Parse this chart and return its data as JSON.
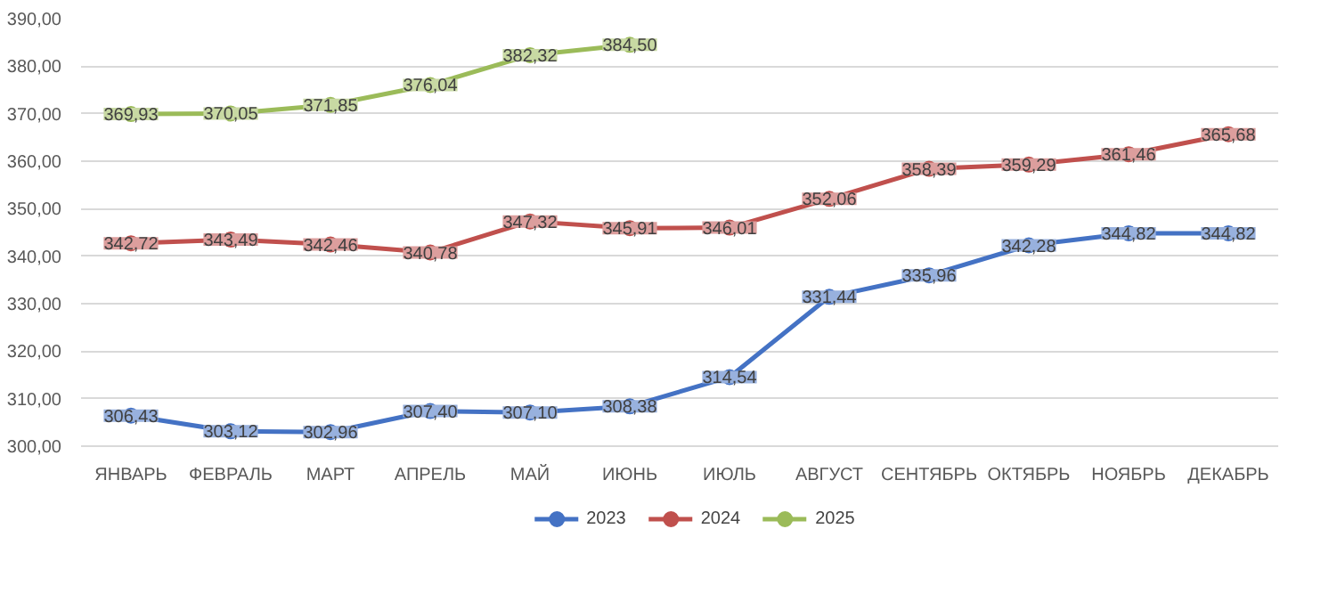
{
  "chart_data": {
    "type": "line",
    "categories": [
      "ЯНВАРЬ",
      "ФЕВРАЛЬ",
      "МАРТ",
      "АПРЕЛЬ",
      "МАЙ",
      "ИЮНЬ",
      "ИЮЛЬ",
      "АВГУСТ",
      "СЕНТЯБРЬ",
      "ОКТЯБРЬ",
      "НОЯБРЬ",
      "ДЕКАБРЬ"
    ],
    "series": [
      {
        "name": "2023",
        "color": "#4472c4",
        "values": [
          306.43,
          303.12,
          302.96,
          307.4,
          307.1,
          308.38,
          314.54,
          331.44,
          335.96,
          342.28,
          344.82,
          344.82
        ],
        "value_labels": [
          "306,43",
          "303,12",
          "302,96",
          "307,40",
          "307,10",
          "308,38",
          "314,54",
          "331,44",
          "335,96",
          "342,28",
          "344,82",
          "344,82"
        ]
      },
      {
        "name": "2024",
        "color": "#c0504d",
        "values": [
          342.72,
          343.49,
          342.46,
          340.78,
          347.32,
          345.91,
          346.01,
          352.06,
          358.39,
          359.29,
          361.46,
          365.68
        ],
        "value_labels": [
          "342,72",
          "343,49",
          "342,46",
          "340,78",
          "347,32",
          "345,91",
          "346,01",
          "352,06",
          "358,39",
          "359,29",
          "361,46",
          "365,68"
        ]
      },
      {
        "name": "2025",
        "color": "#9bbb59",
        "values": [
          369.93,
          370.05,
          371.85,
          376.04,
          382.32,
          384.5,
          null,
          null,
          null,
          null,
          null,
          null
        ],
        "value_labels": [
          "369,93",
          "370,05",
          "371,85",
          "376,04",
          "382,32",
          "384,50",
          null,
          null,
          null,
          null,
          null,
          null
        ]
      }
    ],
    "ylim": [
      300,
      390
    ],
    "yticks": [
      {
        "value": 300,
        "label": "300,00"
      },
      {
        "value": 310,
        "label": "310,00"
      },
      {
        "value": 320,
        "label": "320,00"
      },
      {
        "value": 330,
        "label": "330,00"
      },
      {
        "value": 340,
        "label": "340,00"
      },
      {
        "value": 350,
        "label": "350,00"
      },
      {
        "value": 360,
        "label": "360,00"
      },
      {
        "value": 370,
        "label": "370,00"
      },
      {
        "value": 380,
        "label": "380,00"
      },
      {
        "value": 390,
        "label": "390,00"
      }
    ],
    "grid": "y",
    "legend": "bottom",
    "marker": "circle",
    "line_style": "solid"
  }
}
